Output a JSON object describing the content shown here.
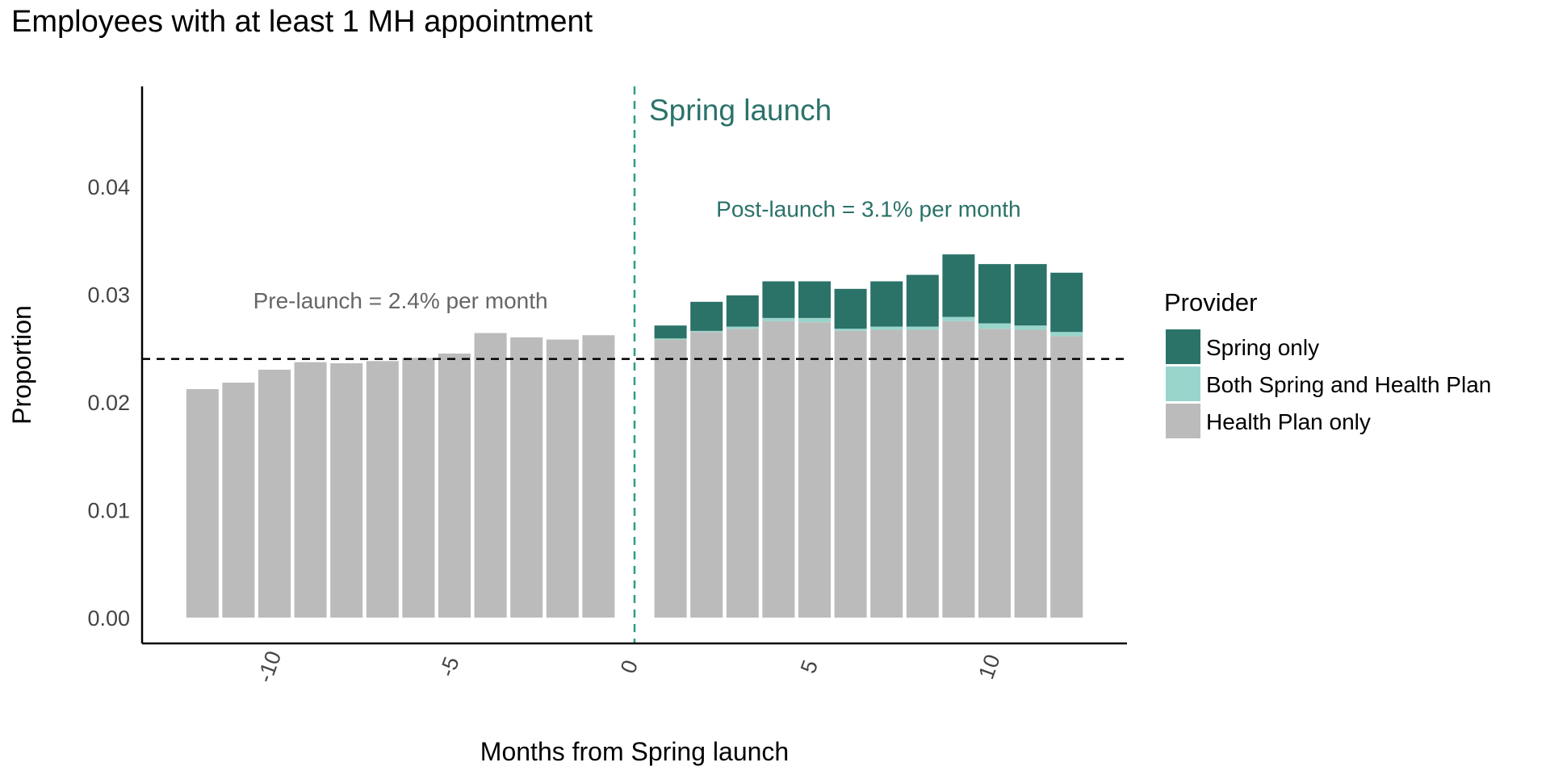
{
  "chart_data": {
    "type": "bar",
    "stacked": true,
    "title": "Employees with at least 1 MH appointment",
    "xlabel": "Months from Spring launch",
    "ylabel": "Proportion",
    "ylim": [
      0,
      0.0485
    ],
    "xlim": [
      -13.8,
      13.8
    ],
    "yticks": [
      "0.00",
      "0.01",
      "0.02",
      "0.03",
      "0.04"
    ],
    "ytick_values": [
      0,
      0.01,
      0.02,
      0.03,
      0.04
    ],
    "xticks": [
      "-10",
      "-5",
      "0",
      "5",
      "10"
    ],
    "xtick_values": [
      -10,
      -5,
      0,
      5,
      10
    ],
    "grid": false,
    "legend": {
      "title": "Provider",
      "position": "right"
    },
    "x": [
      -12,
      -11,
      -10,
      -9,
      -8,
      -7,
      -6,
      -5,
      -4,
      -3,
      -2,
      -1,
      1,
      2,
      3,
      4,
      5,
      6,
      7,
      8,
      9,
      10,
      11,
      12
    ],
    "series": [
      {
        "name": "Health Plan only",
        "color": "#BBBBBB",
        "values": [
          0.0212,
          0.0218,
          0.023,
          0.0237,
          0.0236,
          0.0238,
          0.0241,
          0.0245,
          0.0264,
          0.026,
          0.0258,
          0.0262,
          0.0258,
          0.0265,
          0.0268,
          0.0275,
          0.0274,
          0.0266,
          0.0267,
          0.0267,
          0.0275,
          0.0268,
          0.0267,
          0.0261
        ]
      },
      {
        "name": "Both Spring and Health Plan",
        "color": "#9AD5CC",
        "values": [
          0,
          0,
          0,
          0,
          0,
          0,
          0,
          0,
          0,
          0,
          0,
          0,
          0.0001,
          0.0001,
          0.0002,
          0.0003,
          0.0004,
          0.0002,
          0.0003,
          0.0003,
          0.0004,
          0.0005,
          0.0004,
          0.0004
        ]
      },
      {
        "name": "Spring only",
        "color": "#2B7269",
        "values": [
          0,
          0,
          0,
          0,
          0,
          0,
          0,
          0,
          0,
          0,
          0,
          0,
          0.0012,
          0.0027,
          0.0029,
          0.0034,
          0.0034,
          0.0037,
          0.0042,
          0.0048,
          0.0058,
          0.0055,
          0.0057,
          0.0055
        ]
      }
    ],
    "legend_order": [
      "Spring only",
      "Both Spring and Health Plan",
      "Health Plan only"
    ],
    "hline": {
      "y": 0.024,
      "style": "dashed",
      "color": "#000000"
    },
    "vline": {
      "x": 0,
      "style": "dashed",
      "color": "#2B9E87",
      "label": "Spring launch",
      "label_color": "#2B7269"
    },
    "annotations": [
      {
        "text": "Pre-launch = 2.4% per month",
        "x": -6.5,
        "y": 0.0287,
        "color": "#666666"
      },
      {
        "text": "Post-launch = 3.1% per month",
        "x": 6.5,
        "y": 0.0372,
        "color": "#2B7269"
      }
    ]
  }
}
